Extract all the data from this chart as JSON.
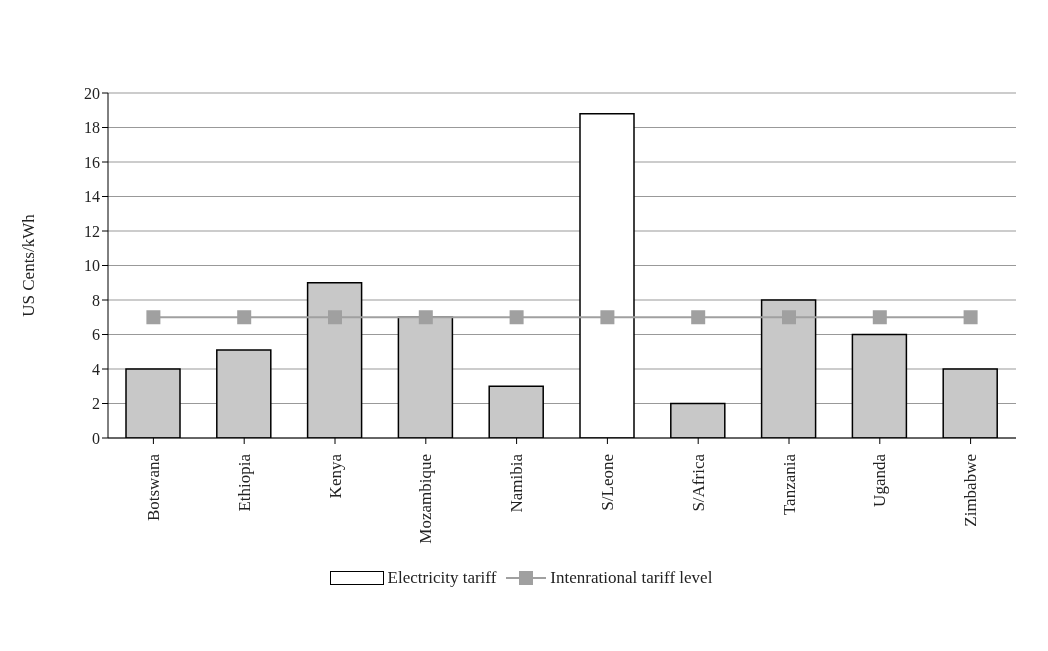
{
  "chart_data": {
    "type": "bar",
    "ylabel": "US Cents/kWh",
    "categories": [
      "Botswana",
      "Ethiopia",
      "Kenya",
      "Mozambique",
      "Namibia",
      "S/Leone",
      "S/Africa",
      "Tanzania",
      "Uganda",
      "Zimbabwe"
    ],
    "series": [
      {
        "name": "Electricity tariff",
        "color": "#ffffff",
        "colors": [
          "#c8c8c8",
          "#c8c8c8",
          "#c8c8c8",
          "#c8c8c8",
          "#c8c8c8",
          "#ffffff",
          "#c8c8c8",
          "#c8c8c8",
          "#c8c8c8",
          "#c8c8c8"
        ],
        "values": [
          4,
          5.1,
          9,
          7,
          3,
          18.8,
          2,
          8,
          6,
          4
        ]
      },
      {
        "name": "Intenrational tariff level",
        "type": "line",
        "color": "#a0a0a0",
        "values": [
          7,
          7,
          7,
          7,
          7,
          7,
          7,
          7,
          7,
          7
        ]
      }
    ],
    "ylim": [
      0,
      20
    ],
    "yticks": [
      0,
      2,
      4,
      6,
      8,
      10,
      12,
      14,
      16,
      18,
      20
    ],
    "grid": "y",
    "legend": "bottom",
    "marker": "square"
  }
}
